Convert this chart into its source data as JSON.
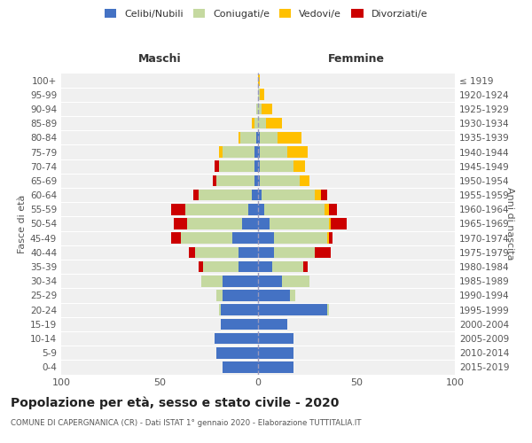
{
  "age_groups": [
    "0-4",
    "5-9",
    "10-14",
    "15-19",
    "20-24",
    "25-29",
    "30-34",
    "35-39",
    "40-44",
    "45-49",
    "50-54",
    "55-59",
    "60-64",
    "65-69",
    "70-74",
    "75-79",
    "80-84",
    "85-89",
    "90-94",
    "95-99",
    "100+"
  ],
  "birth_years": [
    "2015-2019",
    "2010-2014",
    "2005-2009",
    "2000-2004",
    "1995-1999",
    "1990-1994",
    "1985-1989",
    "1980-1984",
    "1975-1979",
    "1970-1974",
    "1965-1969",
    "1960-1964",
    "1955-1959",
    "1950-1954",
    "1945-1949",
    "1940-1944",
    "1935-1939",
    "1930-1934",
    "1925-1929",
    "1920-1924",
    "≤ 1919"
  ],
  "males": {
    "celibi": [
      18,
      21,
      22,
      19,
      19,
      18,
      18,
      10,
      10,
      13,
      8,
      5,
      3,
      2,
      2,
      2,
      1,
      0,
      0,
      0,
      0
    ],
    "coniugati": [
      0,
      0,
      0,
      0,
      1,
      3,
      11,
      18,
      22,
      26,
      28,
      32,
      27,
      19,
      18,
      16,
      8,
      2,
      1,
      0,
      0
    ],
    "vedovi": [
      0,
      0,
      0,
      0,
      0,
      0,
      0,
      0,
      0,
      0,
      0,
      0,
      0,
      0,
      0,
      2,
      1,
      1,
      0,
      0,
      0
    ],
    "divorziati": [
      0,
      0,
      0,
      0,
      0,
      0,
      0,
      2,
      3,
      5,
      7,
      7,
      3,
      2,
      2,
      0,
      0,
      0,
      0,
      0,
      0
    ]
  },
  "females": {
    "nubili": [
      18,
      18,
      18,
      15,
      35,
      16,
      12,
      7,
      8,
      8,
      6,
      3,
      2,
      1,
      1,
      1,
      1,
      0,
      0,
      0,
      0
    ],
    "coniugate": [
      0,
      0,
      0,
      0,
      1,
      3,
      14,
      16,
      21,
      27,
      30,
      31,
      27,
      20,
      17,
      14,
      9,
      4,
      2,
      1,
      0
    ],
    "vedove": [
      0,
      0,
      0,
      0,
      0,
      0,
      0,
      0,
      0,
      1,
      1,
      2,
      3,
      5,
      6,
      10,
      12,
      8,
      5,
      2,
      1
    ],
    "divorziate": [
      0,
      0,
      0,
      0,
      0,
      0,
      0,
      2,
      8,
      2,
      8,
      4,
      3,
      0,
      0,
      0,
      0,
      0,
      0,
      0,
      0
    ]
  },
  "colors": {
    "celibi": "#4472c4",
    "coniugati": "#c5d9a0",
    "vedovi": "#ffc000",
    "divorziati": "#cc0000"
  },
  "xlim": 100,
  "title": "Popolazione per età, sesso e stato civile - 2020",
  "subtitle": "COMUNE DI CAPERGNANICA (CR) - Dati ISTAT 1° gennaio 2020 - Elaborazione TUTTITALIA.IT",
  "ylabel_left": "Fasce di età",
  "ylabel_right": "Anni di nascita",
  "xlabel_left": "Maschi",
  "xlabel_right": "Femmine",
  "background_color": "#f0f0f0"
}
